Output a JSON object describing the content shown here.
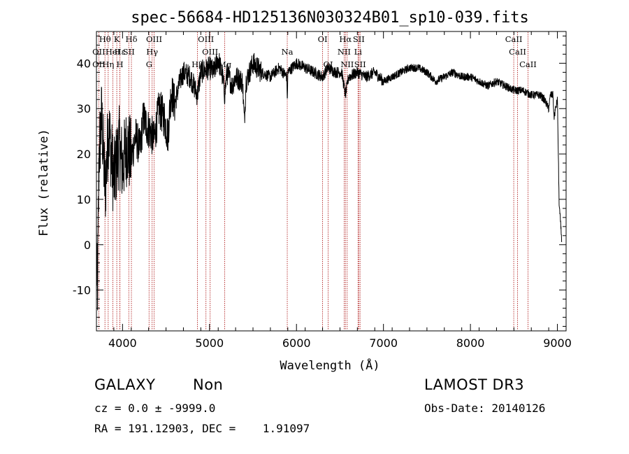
{
  "chart_data": {
    "type": "line",
    "title": "spec-56684-HD125136N030324B01_sp10-039.fits",
    "xlabel": "Wavelength (Å)",
    "ylabel": "Flux (relative)",
    "xlim": [
      3700,
      9100
    ],
    "ylim": [
      -19,
      47
    ],
    "xticks": [
      4000,
      5000,
      6000,
      7000,
      8000,
      9000
    ],
    "yticks": [
      -10,
      0,
      10,
      20,
      30,
      40
    ],
    "grid": false,
    "line_color": "#000000",
    "marker_color": "#b22222",
    "spectral_lines": [
      {
        "label": "OII",
        "x": 3727,
        "row": 3
      },
      {
        "label": "OII",
        "x": 3727,
        "row": 2
      },
      {
        "label": "Hθ",
        "x": 3798,
        "row": 1
      },
      {
        "label": "Hη",
        "x": 3835,
        "row": 3
      },
      {
        "label": "HeI",
        "x": 3889,
        "row": 2
      },
      {
        "label": "K",
        "x": 3934,
        "row": 1
      },
      {
        "label": "H",
        "x": 3969,
        "row": 3
      },
      {
        "label": "Hε",
        "x": 3970,
        "row": 2
      },
      {
        "label": "Hδ",
        "x": 4102,
        "row": 1
      },
      {
        "label": "SII",
        "x": 4072,
        "row": 2
      },
      {
        "label": "OIII",
        "x": 4363,
        "row": 1
      },
      {
        "label": "Hγ",
        "x": 4340,
        "row": 2
      },
      {
        "label": "G",
        "x": 4305,
        "row": 3
      },
      {
        "label": "OIII",
        "x": 4959,
        "row": 1
      },
      {
        "label": "OIII",
        "x": 5007,
        "row": 2
      },
      {
        "label": "Hβ",
        "x": 4861,
        "row": 3
      },
      {
        "label": "Mg",
        "x": 5175,
        "row": 3
      },
      {
        "label": "Na",
        "x": 5894,
        "row": 2
      },
      {
        "label": "OI",
        "x": 6300,
        "row": 1
      },
      {
        "label": "OI",
        "x": 6364,
        "row": 3
      },
      {
        "label": "Hα",
        "x": 6563,
        "row": 1
      },
      {
        "label": "NII",
        "x": 6548,
        "row": 2
      },
      {
        "label": "NII",
        "x": 6583,
        "row": 3
      },
      {
        "label": "SII",
        "x": 6716,
        "row": 1
      },
      {
        "label": "Li",
        "x": 6708,
        "row": 2
      },
      {
        "label": "SII",
        "x": 6731,
        "row": 3
      },
      {
        "label": "CaII",
        "x": 8498,
        "row": 1
      },
      {
        "label": "CaII",
        "x": 8542,
        "row": 2
      },
      {
        "label": "CaII",
        "x": 8662,
        "row": 3
      }
    ],
    "spectrum_anchors": [
      [
        3700,
        2
      ],
      [
        3710,
        -14
      ],
      [
        3730,
        20
      ],
      [
        3760,
        28
      ],
      [
        3800,
        12
      ],
      [
        3840,
        26
      ],
      [
        3900,
        14
      ],
      [
        3960,
        22
      ],
      [
        4000,
        17
      ],
      [
        4050,
        22
      ],
      [
        4100,
        19
      ],
      [
        4150,
        24
      ],
      [
        4200,
        21
      ],
      [
        4240,
        28
      ],
      [
        4280,
        26
      ],
      [
        4320,
        25
      ],
      [
        4360,
        23
      ],
      [
        4420,
        30
      ],
      [
        4480,
        28
      ],
      [
        4520,
        24
      ],
      [
        4560,
        34
      ],
      [
        4600,
        31
      ],
      [
        4660,
        36
      ],
      [
        4700,
        38
      ],
      [
        4780,
        37
      ],
      [
        4860,
        33
      ],
      [
        4900,
        38
      ],
      [
        5000,
        39
      ],
      [
        5050,
        38
      ],
      [
        5100,
        41
      ],
      [
        5150,
        37
      ],
      [
        5175,
        33
      ],
      [
        5200,
        38
      ],
      [
        5260,
        35
      ],
      [
        5300,
        37
      ],
      [
        5380,
        36
      ],
      [
        5400,
        27
      ],
      [
        5420,
        36
      ],
      [
        5500,
        40
      ],
      [
        5600,
        38
      ],
      [
        5700,
        37
      ],
      [
        5800,
        39
      ],
      [
        5890,
        37
      ],
      [
        5894,
        30
      ],
      [
        5900,
        38
      ],
      [
        6000,
        40
      ],
      [
        6100,
        39
      ],
      [
        6200,
        38
      ],
      [
        6300,
        37
      ],
      [
        6360,
        39
      ],
      [
        6450,
        38
      ],
      [
        6520,
        38
      ],
      [
        6563,
        33
      ],
      [
        6600,
        37
      ],
      [
        6700,
        38
      ],
      [
        6800,
        37
      ],
      [
        6900,
        38
      ],
      [
        7000,
        36
      ],
      [
        7100,
        37
      ],
      [
        7200,
        38
      ],
      [
        7300,
        39
      ],
      [
        7400,
        39
      ],
      [
        7500,
        38
      ],
      [
        7600,
        36
      ],
      [
        7700,
        37
      ],
      [
        7800,
        38
      ],
      [
        7900,
        37
      ],
      [
        8000,
        37
      ],
      [
        8100,
        36
      ],
      [
        8200,
        35
      ],
      [
        8300,
        36
      ],
      [
        8400,
        35
      ],
      [
        8500,
        34
      ],
      [
        8600,
        34
      ],
      [
        8700,
        33
      ],
      [
        8800,
        33
      ],
      [
        8850,
        32
      ],
      [
        8900,
        30
      ],
      [
        8920,
        33
      ],
      [
        8950,
        33
      ],
      [
        8960,
        28
      ],
      [
        9000,
        32
      ],
      [
        9020,
        9
      ],
      [
        9050,
        1
      ]
    ]
  },
  "info": {
    "object_class": "GALAXY",
    "object_subclass": "Non",
    "survey": "LAMOST DR3",
    "redshift_text": "cz = 0.0 ± -9999.0",
    "obs_date_text": "Obs-Date: 20140126",
    "coords_text": "RA = 191.12903, DEC =    1.91097"
  }
}
